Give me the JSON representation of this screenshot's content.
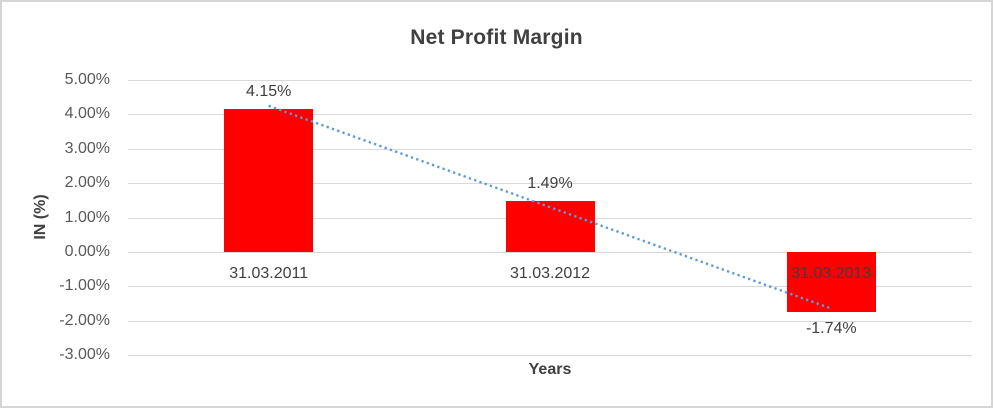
{
  "chart_data": {
    "type": "bar",
    "title": "Net Profit Margin",
    "xlabel": "Years",
    "ylabel": "IN (%)",
    "categories": [
      "31.03.2011",
      "31.03.2012",
      "31.03.2013"
    ],
    "values": [
      4.15,
      1.49,
      -1.74
    ],
    "data_labels": [
      "4.15%",
      "1.49%",
      "-1.74%"
    ],
    "ylim": [
      -3,
      5
    ],
    "ytick_step": 1,
    "ytick_labels": [
      "5.00%",
      "4.00%",
      "3.00%",
      "2.00%",
      "1.00%",
      "0.00%",
      "-1.00%",
      "-2.00%",
      "-3.00%"
    ],
    "grid": true,
    "legend": "none",
    "bar_color": "#ff0000",
    "trendline": {
      "style": "dotted",
      "color": "#5b9bd5",
      "start_value": 4.25,
      "end_value": -1.65
    }
  },
  "colors": {
    "title_text": "#404040",
    "axis_text": "#595959",
    "gridline": "#d9d9d9",
    "frame_border": "#d5d5d5",
    "background": "#ffffff"
  }
}
